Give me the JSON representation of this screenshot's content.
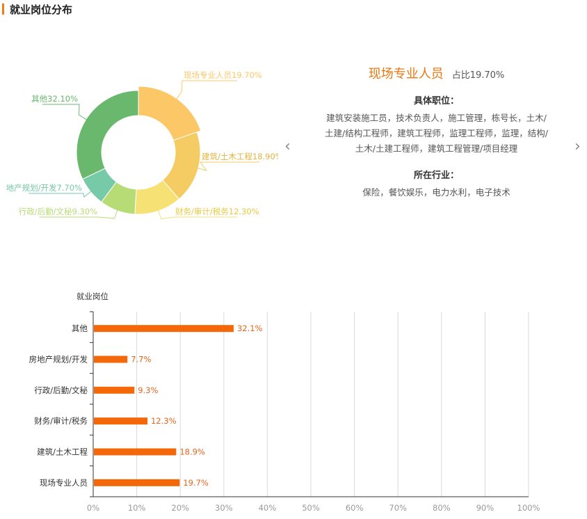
{
  "page": {
    "title": "就业岗位分布"
  },
  "detail": {
    "name": "现场专业人员",
    "ratio": "占比19.70%",
    "positions_label": "具体职位：",
    "positions_lines": [
      "建筑安装施工员，技术负责人，施工管理，栋号长，土木/",
      "土建/结构工程师，建筑工程师，监理工程师，监理，结构/",
      "土木/土建工程师，建筑工程管理/项目经理"
    ],
    "industry_label": "所在行业：",
    "industry_text": "保险，餐饮娱乐，电力水利，电子技术"
  },
  "nav": {
    "prev_icon": "chevron-left-icon",
    "next_icon": "chevron-right-icon"
  },
  "chart_data": [
    {
      "type": "pie",
      "donut": true,
      "slices": [
        {
          "label": "现场专业人员19.70%",
          "value": 19.7,
          "color": "#fcc767",
          "highlight": true
        },
        {
          "label": "建筑/土木工程18.90%",
          "value": 18.9,
          "color": "#f4cc63"
        },
        {
          "label": "财务/审计/税务12.30%",
          "value": 12.3,
          "color": "#f6e174"
        },
        {
          "label": "行政/后勤/文秘9.30%",
          "value": 9.3,
          "color": "#b7dc75"
        },
        {
          "label": "地产规划/开发7.70%",
          "value": 7.7,
          "color": "#76caa7"
        },
        {
          "label": "其他32.10%",
          "value": 32.1,
          "color": "#6ab86d"
        }
      ]
    },
    {
      "type": "bar",
      "orientation": "horizontal",
      "ylabel": "就业岗位",
      "categories": [
        "其他",
        "房地产规划/开发",
        "行政/后勤/文秘",
        "财务/审计/税务",
        "建筑/土木工程",
        "现场专业人员"
      ],
      "values": [
        32.1,
        7.7,
        9.3,
        12.3,
        18.9,
        19.7
      ],
      "data_labels": [
        "32.1%",
        "7.7%",
        "9.3%",
        "12.3%",
        "18.9%",
        "19.7%"
      ],
      "x_ticks": [
        "0%",
        "10%",
        "20%",
        "30%",
        "40%",
        "50%",
        "60%",
        "70%",
        "80%",
        "90%",
        "100%"
      ],
      "xlim": [
        0,
        100
      ],
      "grid": true,
      "bar_color": "#f5680a",
      "label_color": "#e8641a"
    }
  ]
}
